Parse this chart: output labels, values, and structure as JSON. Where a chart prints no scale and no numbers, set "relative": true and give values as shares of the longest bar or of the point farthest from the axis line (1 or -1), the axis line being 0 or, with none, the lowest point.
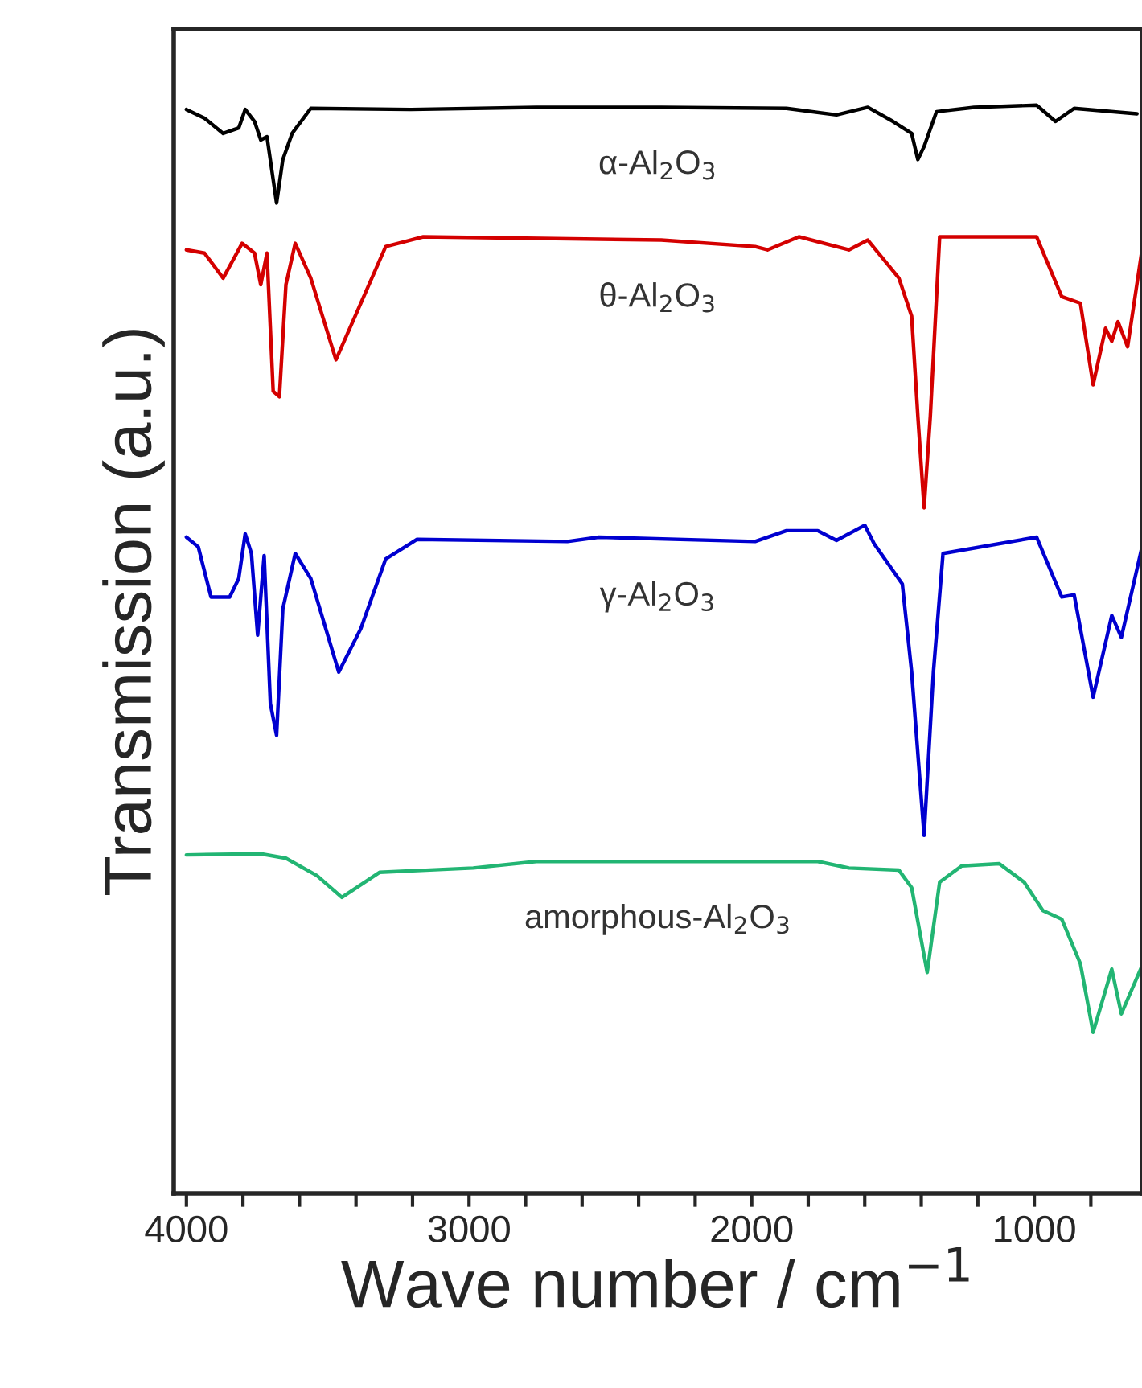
{
  "chart_data": {
    "type": "line",
    "relative": true,
    "xlabel": "Wave number / cm$^{−1}$",
    "ylabel": "Transmission (a.u.)",
    "xlim": [
      4045,
      619
    ],
    "xticks": [
      4000,
      {
        "value": 3800,
        "label": null
      },
      {
        "value": 3600,
        "label": null
      },
      {
        "value": 3400,
        "label": null
      },
      {
        "value": 3200,
        "label": null
      },
      3000,
      {
        "value": 2800,
        "label": null
      },
      {
        "value": 2600,
        "label": null
      },
      {
        "value": 2400,
        "label": null
      },
      {
        "value": 2200,
        "label": null
      },
      2000,
      {
        "value": 1800,
        "label": null
      },
      {
        "value": 1600,
        "label": null
      },
      {
        "value": 1400,
        "label": null
      },
      {
        "value": 1200,
        "label": null
      },
      1000,
      {
        "value": 800,
        "label": null
      }
    ],
    "grid": false,
    "legend": false,
    "marker": "none",
    "line_style": "solid",
    "series": [
      {
        "name": "α-Al$_{2}$O$_{3}$",
        "color": "#000000",
        "x": [
          4000,
          3936,
          3870,
          3815,
          3792,
          3759,
          3737,
          3715,
          3681,
          3659,
          3626,
          3560,
          3206,
          2762,
          2320,
          1877,
          1700,
          1589,
          1500,
          1434,
          1412,
          1390,
          1346,
          1213,
          992,
          925,
          859,
          637
        ],
        "values": [
          0.996,
          0.988,
          0.974,
          0.979,
          0.996,
          0.985,
          0.968,
          0.971,
          0.91,
          0.95,
          0.974,
          0.997,
          0.996,
          0.998,
          0.998,
          0.997,
          0.991,
          0.998,
          0.985,
          0.974,
          0.95,
          0.962,
          0.994,
          0.998,
          1.0,
          0.985,
          0.997,
          0.992
        ]
      },
      {
        "name": "θ-Al$_{2}$O$_{3}$",
        "color": "#d40000",
        "x": [
          4000,
          3936,
          3870,
          3803,
          3759,
          3737,
          3715,
          3693,
          3671,
          3648,
          3615,
          3560,
          3471,
          3383,
          3295,
          3162,
          2320,
          1988,
          1944,
          1833,
          1656,
          1589,
          1479,
          1434,
          1412,
          1390,
          1368,
          1335,
          992,
          903,
          837,
          792,
          748,
          726,
          704,
          670,
          619
        ],
        "values": [
          0.867,
          0.864,
          0.841,
          0.873,
          0.864,
          0.835,
          0.864,
          0.737,
          0.732,
          0.835,
          0.873,
          0.841,
          0.766,
          0.818,
          0.87,
          0.879,
          0.876,
          0.87,
          0.867,
          0.879,
          0.867,
          0.876,
          0.841,
          0.806,
          0.714,
          0.63,
          0.714,
          0.879,
          0.879,
          0.824,
          0.818,
          0.743,
          0.795,
          0.783,
          0.801,
          0.778,
          0.867
        ]
      },
      {
        "name": "γ-Al$_{2}$O$_{3}$",
        "color": "#0000d0",
        "x": [
          4000,
          3958,
          3913,
          3847,
          3815,
          3792,
          3770,
          3748,
          3725,
          3703,
          3681,
          3659,
          3615,
          3560,
          3461,
          3383,
          3295,
          3184,
          2652,
          2541,
          1988,
          1877,
          1766,
          1700,
          1600,
          1567,
          1467,
          1434,
          1390,
          1357,
          1323,
          992,
          903,
          859,
          792,
          726,
          692,
          619
        ],
        "values": [
          0.603,
          0.594,
          0.548,
          0.548,
          0.565,
          0.606,
          0.588,
          0.513,
          0.586,
          0.45,
          0.421,
          0.537,
          0.588,
          0.565,
          0.479,
          0.519,
          0.583,
          0.601,
          0.599,
          0.603,
          0.599,
          0.609,
          0.609,
          0.6,
          0.614,
          0.597,
          0.56,
          0.479,
          0.329,
          0.479,
          0.588,
          0.603,
          0.548,
          0.55,
          0.456,
          0.531,
          0.511,
          0.594
        ]
      },
      {
        "name": "amorphous-Al$_{2}$O$_{3}$",
        "color": "#22b573",
        "x": [
          4000,
          3737,
          3648,
          3538,
          3450,
          3317,
          2985,
          2762,
          1766,
          1656,
          1479,
          1434,
          1379,
          1335,
          1257,
          1124,
          1036,
          970,
          903,
          837,
          792,
          726,
          692,
          619
        ],
        "values": [
          0.311,
          0.312,
          0.308,
          0.292,
          0.272,
          0.295,
          0.299,
          0.305,
          0.305,
          0.299,
          0.297,
          0.281,
          0.203,
          0.286,
          0.301,
          0.303,
          0.286,
          0.26,
          0.252,
          0.211,
          0.148,
          0.206,
          0.165,
          0.209
        ]
      }
    ]
  }
}
